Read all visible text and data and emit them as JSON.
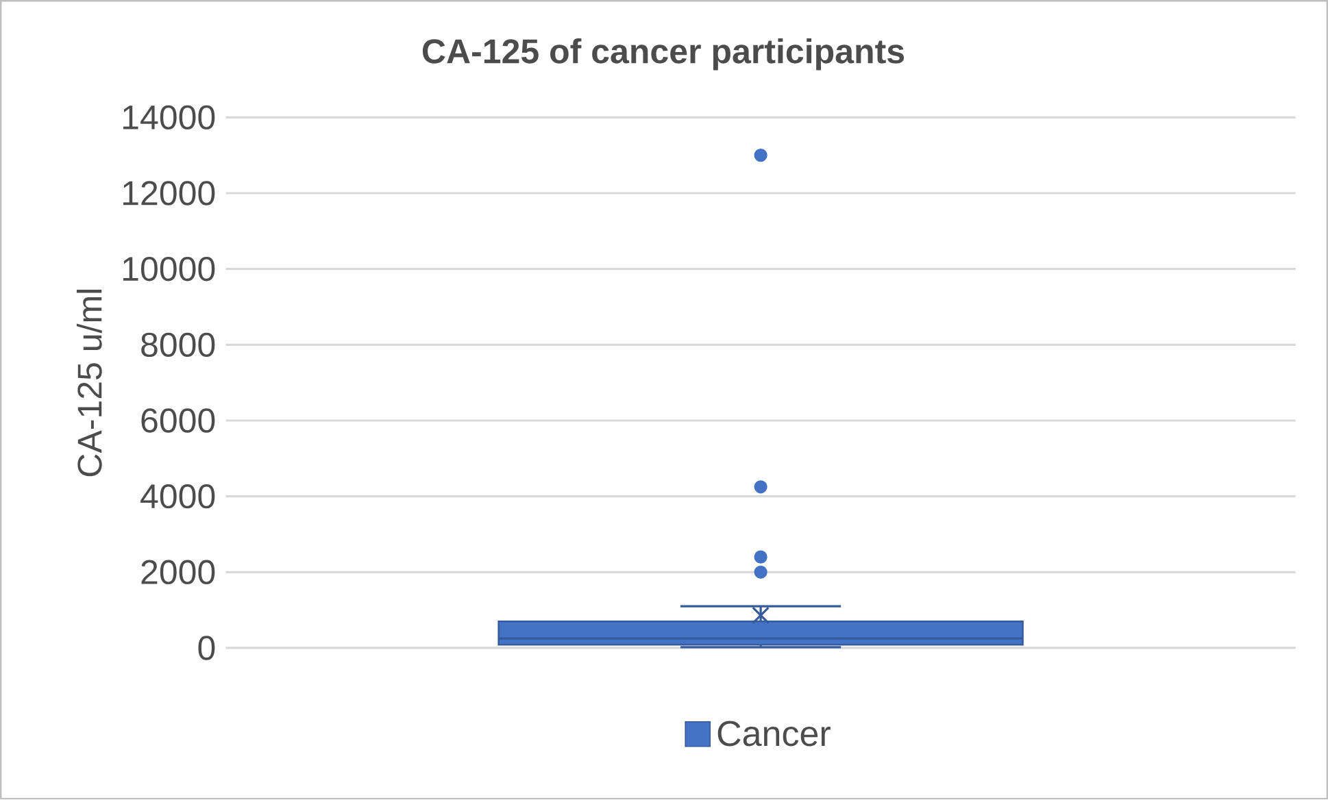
{
  "chart_data": {
    "type": "box",
    "title": "CA-125 of cancer participants",
    "ylabel": "CA-125 u/ml",
    "categories": [
      null
    ],
    "series": [
      {
        "name": "Cancer",
        "color": "#4472c4",
        "boxes": [
          {
            "low": 20,
            "q1": 85,
            "median": 250,
            "q3": 700,
            "high": 1100,
            "mean": 860,
            "outliers": [
              2000,
              2400,
              4250,
              13000
            ]
          }
        ]
      }
    ],
    "ylim": [
      0,
      14000
    ],
    "yticks": [
      0,
      2000,
      4000,
      6000,
      8000,
      10000,
      12000,
      14000
    ],
    "grid": "y",
    "legend": "bottom"
  }
}
